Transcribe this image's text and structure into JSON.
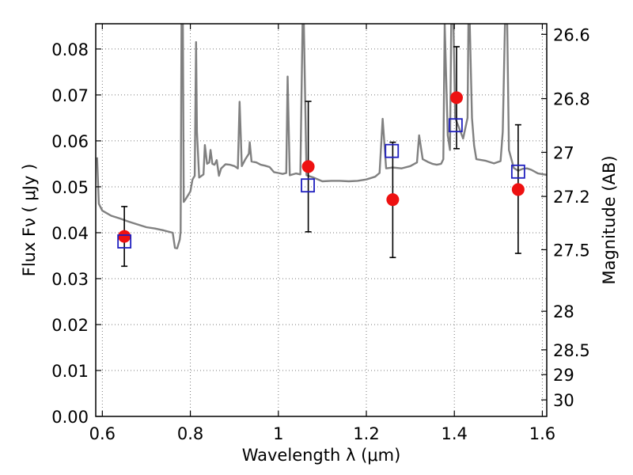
{
  "chart_data": {
    "type": "scatter",
    "xlabel": "Wavelength  λ (μm)",
    "ylabel": "Flux  Fν  ( μJy )",
    "y2label": "Magnitude (AB)",
    "xlim": [
      0.585,
      1.61
    ],
    "ylim": [
      0.0,
      0.0855
    ],
    "x_ticks": [
      {
        "value": 0.6,
        "label": "0.6"
      },
      {
        "value": 0.8,
        "label": "0.8"
      },
      {
        "value": 1.0,
        "label": "1"
      },
      {
        "value": 1.2,
        "label": "1.2"
      },
      {
        "value": 1.4,
        "label": "1.4"
      },
      {
        "value": 1.6,
        "label": "1.6"
      }
    ],
    "y_ticks": [
      {
        "value": 0.0,
        "label": "0.00"
      },
      {
        "value": 0.01,
        "label": "0.01"
      },
      {
        "value": 0.02,
        "label": "0.02"
      },
      {
        "value": 0.03,
        "label": "0.03"
      },
      {
        "value": 0.04,
        "label": "0.04"
      },
      {
        "value": 0.05,
        "label": "0.05"
      },
      {
        "value": 0.06,
        "label": "0.06"
      },
      {
        "value": 0.07,
        "label": "0.07"
      },
      {
        "value": 0.08,
        "label": "0.08"
      }
    ],
    "y2_ticks": [
      {
        "flux": 0.0832,
        "label": "26.6"
      },
      {
        "flux": 0.0692,
        "label": "26.8"
      },
      {
        "flux": 0.0575,
        "label": "27"
      },
      {
        "flux": 0.0479,
        "label": "27.2"
      },
      {
        "flux": 0.0363,
        "label": "27.5"
      },
      {
        "flux": 0.0229,
        "label": "28"
      },
      {
        "flux": 0.0145,
        "label": "28.5"
      },
      {
        "flux": 0.0091,
        "label": "29"
      },
      {
        "flux": 0.0036,
        "label": "30"
      }
    ],
    "grid": true,
    "series": [
      {
        "marker": "line",
        "color": "#808080",
        "points": [
          [
            0.588,
            0.0564
          ],
          [
            0.592,
            0.0463
          ],
          [
            0.6,
            0.0448
          ],
          [
            0.62,
            0.0437
          ],
          [
            0.64,
            0.0431
          ],
          [
            0.66,
            0.0424
          ],
          [
            0.68,
            0.0418
          ],
          [
            0.7,
            0.0412
          ],
          [
            0.72,
            0.0409
          ],
          [
            0.74,
            0.0405
          ],
          [
            0.76,
            0.04
          ],
          [
            0.765,
            0.0367
          ],
          [
            0.77,
            0.0366
          ],
          [
            0.776,
            0.0385
          ],
          [
            0.778,
            0.0402
          ],
          [
            0.78,
            0.0855
          ],
          [
            0.783,
            0.0855
          ],
          [
            0.785,
            0.0467
          ],
          [
            0.79,
            0.0474
          ],
          [
            0.8,
            0.049
          ],
          [
            0.805,
            0.0516
          ],
          [
            0.81,
            0.0524
          ],
          [
            0.813,
            0.0815
          ],
          [
            0.815,
            0.062
          ],
          [
            0.82,
            0.052
          ],
          [
            0.83,
            0.0527
          ],
          [
            0.833,
            0.0591
          ],
          [
            0.838,
            0.055
          ],
          [
            0.843,
            0.0553
          ],
          [
            0.846,
            0.058
          ],
          [
            0.85,
            0.055
          ],
          [
            0.855,
            0.0548
          ],
          [
            0.86,
            0.0558
          ],
          [
            0.865,
            0.0524
          ],
          [
            0.87,
            0.054
          ],
          [
            0.88,
            0.0549
          ],
          [
            0.89,
            0.0548
          ],
          [
            0.9,
            0.0545
          ],
          [
            0.908,
            0.054
          ],
          [
            0.912,
            0.0685
          ],
          [
            0.917,
            0.0545
          ],
          [
            0.925,
            0.056
          ],
          [
            0.933,
            0.0572
          ],
          [
            0.935,
            0.0597
          ],
          [
            0.939,
            0.0555
          ],
          [
            0.95,
            0.0553
          ],
          [
            0.96,
            0.0548
          ],
          [
            0.97,
            0.0546
          ],
          [
            0.98,
            0.0543
          ],
          [
            0.99,
            0.0532
          ],
          [
            1.0,
            0.053
          ],
          [
            1.01,
            0.0528
          ],
          [
            1.018,
            0.053
          ],
          [
            1.021,
            0.074
          ],
          [
            1.026,
            0.0525
          ],
          [
            1.04,
            0.0529
          ],
          [
            1.05,
            0.0527
          ],
          [
            1.055,
            0.0855
          ],
          [
            1.058,
            0.0855
          ],
          [
            1.064,
            0.0525
          ],
          [
            1.08,
            0.052
          ],
          [
            1.1,
            0.0512
          ],
          [
            1.12,
            0.0513
          ],
          [
            1.14,
            0.0513
          ],
          [
            1.16,
            0.0512
          ],
          [
            1.18,
            0.0513
          ],
          [
            1.2,
            0.0516
          ],
          [
            1.22,
            0.0522
          ],
          [
            1.23,
            0.053
          ],
          [
            1.237,
            0.0648
          ],
          [
            1.245,
            0.054
          ],
          [
            1.26,
            0.0542
          ],
          [
            1.28,
            0.054
          ],
          [
            1.3,
            0.0545
          ],
          [
            1.315,
            0.0553
          ],
          [
            1.32,
            0.0612
          ],
          [
            1.328,
            0.056
          ],
          [
            1.34,
            0.0554
          ],
          [
            1.35,
            0.055
          ],
          [
            1.36,
            0.0548
          ],
          [
            1.37,
            0.055
          ],
          [
            1.375,
            0.056
          ],
          [
            1.378,
            0.0855
          ],
          [
            1.385,
            0.0612
          ],
          [
            1.39,
            0.058
          ],
          [
            1.393,
            0.0855
          ],
          [
            1.398,
            0.0855
          ],
          [
            1.402,
            0.065
          ],
          [
            1.41,
            0.063
          ],
          [
            1.42,
            0.0605
          ],
          [
            1.43,
            0.065
          ],
          [
            1.432,
            0.0855
          ],
          [
            1.435,
            0.0855
          ],
          [
            1.44,
            0.065
          ],
          [
            1.445,
            0.059
          ],
          [
            1.45,
            0.056
          ],
          [
            1.47,
            0.0557
          ],
          [
            1.49,
            0.0551
          ],
          [
            1.505,
            0.0556
          ],
          [
            1.51,
            0.062
          ],
          [
            1.515,
            0.0855
          ],
          [
            1.52,
            0.0855
          ],
          [
            1.524,
            0.058
          ],
          [
            1.535,
            0.0541
          ],
          [
            1.545,
            0.0535
          ],
          [
            1.555,
            0.0539
          ],
          [
            1.565,
            0.054
          ],
          [
            1.575,
            0.0537
          ],
          [
            1.59,
            0.0529
          ],
          [
            1.61,
            0.0526
          ]
        ]
      },
      {
        "marker": "filled-circle",
        "color": "#ee1111",
        "points": [
          {
            "x": 0.65,
            "y": 0.0392,
            "yerr_low": 0.0327,
            "yerr_high": 0.0457
          },
          {
            "x": 1.068,
            "y": 0.0544,
            "yerr_low": 0.0402,
            "yerr_high": 0.0686
          },
          {
            "x": 1.26,
            "y": 0.0472,
            "yerr_low": 0.0346,
            "yerr_high": 0.0597
          },
          {
            "x": 1.405,
            "y": 0.0694,
            "yerr_low": 0.0583,
            "yerr_high": 0.0805
          },
          {
            "x": 1.545,
            "y": 0.0494,
            "yerr_low": 0.0355,
            "yerr_high": 0.0635
          }
        ]
      },
      {
        "marker": "open-square",
        "color": "#1f1fbf",
        "points": [
          {
            "x": 0.65,
            "y": 0.0381
          },
          {
            "x": 1.067,
            "y": 0.0503
          },
          {
            "x": 1.258,
            "y": 0.0578
          },
          {
            "x": 1.403,
            "y": 0.0634
          },
          {
            "x": 1.545,
            "y": 0.0533
          }
        ]
      }
    ]
  }
}
